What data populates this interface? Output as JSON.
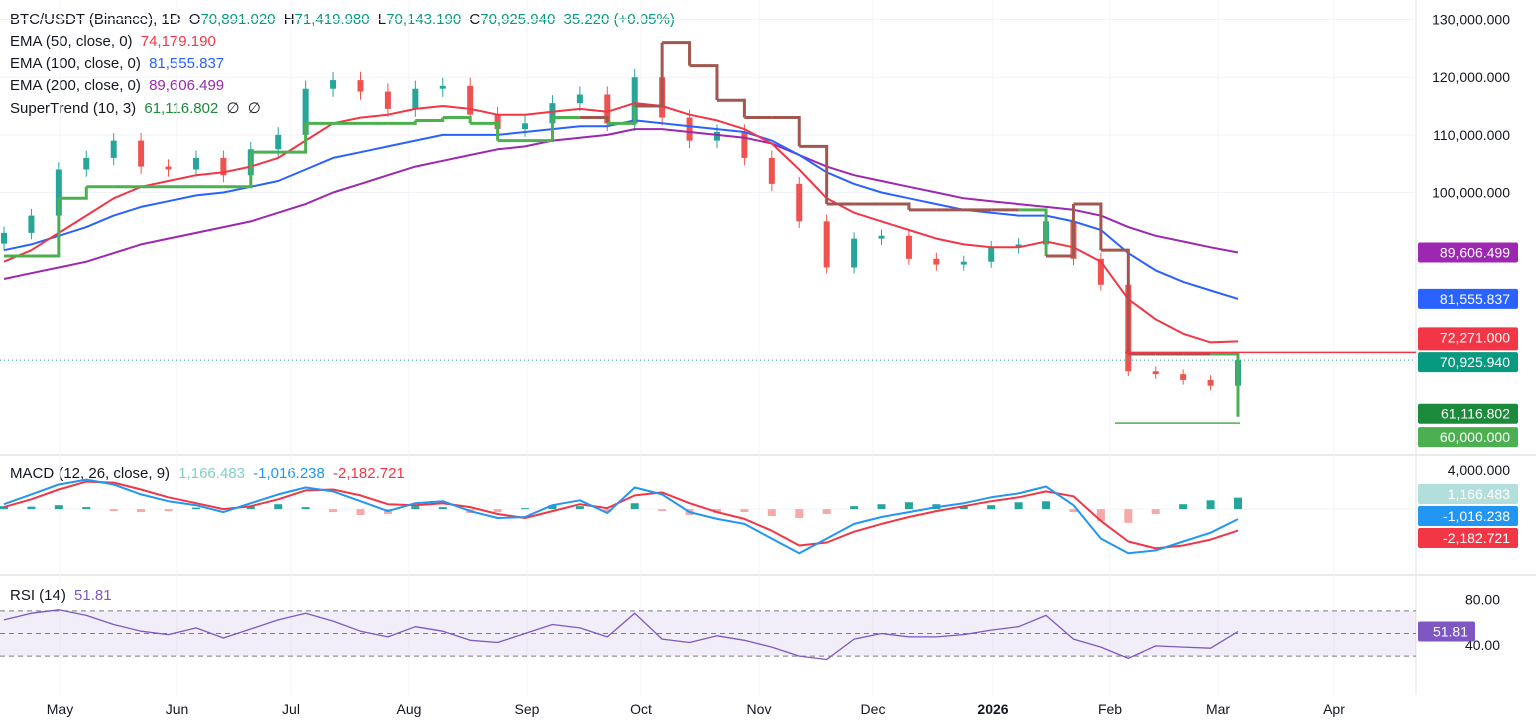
{
  "header": {
    "symbol": "BTC/USDT (Binance), 1D",
    "open_label": "O",
    "open": "70,891.020",
    "high_label": "H",
    "high": "71,419.980",
    "low_label": "L",
    "low": "70,143.190",
    "close_label": "C",
    "close": "70,925.940",
    "change": "35.220 (+0.05%)",
    "ema50_label": "EMA (50, close, 0)",
    "ema50_value": "74,179.190",
    "ema100_label": "EMA (100, close, 0)",
    "ema100_value": "81,555.837",
    "ema200_label": "EMA (200, close, 0)",
    "ema200_value": "89,606.499",
    "supertrend_label": "SuperTrend (10, 3)",
    "supertrend_value": "61,116.802",
    "null_glyph": "∅",
    "macd_label": "MACD (12, 26, close, 9)",
    "macd_hist": "1,166.483",
    "macd_line": "-1,016.238",
    "macd_signal": "-2,182.721",
    "rsi_label": "RSI (14)",
    "rsi_value": "51.81"
  },
  "price_axis": [
    "130,000.000",
    "120,000.000",
    "110,000.000",
    "100,000.000"
  ],
  "macd_axis": [
    "4,000.000"
  ],
  "rsi_axis": [
    "80.00",
    "40.00"
  ],
  "badges": {
    "ema200": "89,606.499",
    "ema100": "81,555.837",
    "ema50": "74,179.190",
    "level_high": "72,271.000",
    "close": "70,925.940",
    "supertrend": "61,116.802",
    "level_low": "60,000.000",
    "macd_hist": "1,166.483",
    "macd_line": "-1,016.238",
    "macd_signal": "-2,182.721",
    "rsi": "51.81"
  },
  "months": [
    "May",
    "Jun",
    "Jul",
    "Aug",
    "Sep",
    "Oct",
    "Nov",
    "Dec",
    "2026",
    "Feb",
    "Mar",
    "Apr"
  ],
  "colors": {
    "up": "#26a69a",
    "down": "#ef5350",
    "ema50": "#f23645",
    "ema100": "#2962ff",
    "ema200": "#9c27b0",
    "supertrend_up": "#4caf50",
    "supertrend_down": "#a1574f",
    "macd_line": "#2196f3",
    "macd_signal": "#f23645",
    "rsi": "#7e57c2",
    "level_line": "#f23645",
    "low_line": "#4caf50"
  },
  "chart_data": {
    "type": "candlestick",
    "interval": "1D",
    "x": [
      "2025-04-24",
      "2025-05-01",
      "2025-05-08",
      "2025-05-15",
      "2025-05-22",
      "2025-05-29",
      "2025-06-05",
      "2025-06-12",
      "2025-06-19",
      "2025-06-26",
      "2025-07-03",
      "2025-07-10",
      "2025-07-17",
      "2025-07-24",
      "2025-07-31",
      "2025-08-07",
      "2025-08-14",
      "2025-08-21",
      "2025-08-28",
      "2025-09-04",
      "2025-09-11",
      "2025-09-18",
      "2025-09-25",
      "2025-10-02",
      "2025-10-09",
      "2025-10-16",
      "2025-10-23",
      "2025-10-30",
      "2025-11-06",
      "2025-11-13",
      "2025-11-20",
      "2025-11-27",
      "2025-12-04",
      "2025-12-11",
      "2025-12-18",
      "2025-12-25",
      "2026-01-01",
      "2026-01-08",
      "2026-01-15",
      "2026-01-22",
      "2026-01-29",
      "2026-02-05",
      "2026-02-12",
      "2026-02-19",
      "2026-02-26",
      "2026-03-05"
    ],
    "close": [
      93000,
      96000,
      104000,
      106000,
      109000,
      104500,
      104000,
      106000,
      103000,
      107500,
      110000,
      118000,
      119500,
      117500,
      114500,
      118000,
      118500,
      113500,
      111000,
      112000,
      115500,
      117000,
      112000,
      120000,
      113000,
      109000,
      110500,
      106000,
      101500,
      95000,
      87000,
      92000,
      92500,
      88500,
      87500,
      88000,
      90500,
      91000,
      95000,
      88500,
      84000,
      69000,
      68500,
      67500,
      66500,
      70926
    ],
    "ema50": [
      88000,
      90000,
      93000,
      96000,
      99000,
      101000,
      102000,
      103000,
      103500,
      104500,
      106000,
      109000,
      112000,
      113000,
      113500,
      114500,
      115000,
      114500,
      113500,
      113500,
      114000,
      114500,
      114000,
      115500,
      115000,
      113500,
      112500,
      111000,
      108500,
      104000,
      99000,
      96500,
      95000,
      93500,
      92000,
      91000,
      90500,
      90500,
      91500,
      90500,
      88000,
      81500,
      78000,
      75500,
      74000,
      74179
    ],
    "ema100": [
      90000,
      91000,
      92500,
      94000,
      96000,
      97500,
      98500,
      99500,
      100000,
      101000,
      102000,
      104000,
      106000,
      107000,
      108000,
      109000,
      110000,
      110000,
      110000,
      110500,
      111000,
      111500,
      111500,
      112500,
      112000,
      111500,
      111000,
      110500,
      109000,
      106500,
      103500,
      101500,
      100000,
      99000,
      98000,
      97000,
      96500,
      96000,
      96000,
      95000,
      93500,
      89500,
      86500,
      84500,
      83000,
      81556
    ],
    "ema200": [
      85000,
      86000,
      87000,
      88000,
      89500,
      91000,
      92000,
      93000,
      94000,
      95000,
      96500,
      98000,
      100000,
      101500,
      103000,
      104500,
      105500,
      106500,
      107500,
      108000,
      109000,
      109500,
      110000,
      111000,
      111000,
      110500,
      110000,
      109500,
      108500,
      106500,
      104500,
      103000,
      102000,
      101000,
      100000,
      99000,
      98500,
      98000,
      97500,
      97000,
      96000,
      94000,
      92500,
      91500,
      90500,
      89606
    ],
    "supertrend": [
      89000,
      89000,
      99000,
      101000,
      101000,
      101000,
      101000,
      101000,
      101000,
      107000,
      107000,
      112000,
      112000,
      112000,
      112000,
      112500,
      113000,
      112000,
      109000,
      109000,
      113000,
      113000,
      112000,
      115000,
      126000,
      122000,
      116000,
      113000,
      113000,
      108000,
      98000,
      98000,
      98000,
      97000,
      97000,
      97000,
      97000,
      97000,
      89000,
      98000,
      90000,
      72000,
      72000,
      72000,
      72000,
      61117
    ],
    "macd_hist": [
      300,
      250,
      400,
      200,
      -200,
      -300,
      -200,
      150,
      100,
      300,
      500,
      200,
      -300,
      -600,
      -500,
      300,
      200,
      -400,
      -300,
      100,
      400,
      300,
      -300,
      600,
      -200,
      -600,
      -400,
      -300,
      -700,
      -900,
      -500,
      300,
      500,
      700,
      500,
      300,
      400,
      700,
      800,
      -300,
      -1200,
      -1400,
      -500,
      500,
      900,
      1166
    ],
    "macd_line": [
      500,
      1500,
      2500,
      3000,
      2500,
      1500,
      800,
      400,
      -300,
      600,
      1500,
      2200,
      1800,
      800,
      -200,
      600,
      800,
      -200,
      -900,
      -800,
      400,
      900,
      -400,
      2200,
      1500,
      -300,
      -1000,
      -1500,
      -3000,
      -4500,
      -3000,
      -1500,
      -800,
      -300,
      200,
      600,
      1200,
      1600,
      2300,
      400,
      -3000,
      -4500,
      -4200,
      -3300,
      -2400,
      -1016
    ],
    "macd_signal": [
      200,
      1000,
      2000,
      2800,
      2700,
      2000,
      1200,
      600,
      0,
      300,
      1000,
      1900,
      2000,
      1400,
      500,
      400,
      600,
      200,
      -500,
      -900,
      -200,
      500,
      100,
      1400,
      1700,
      600,
      -300,
      -1000,
      -2200,
      -3700,
      -3400,
      -2300,
      -1500,
      -800,
      -200,
      300,
      800,
      1200,
      1800,
      1300,
      -1200,
      -3300,
      -4000,
      -3700,
      -3100,
      -2183
    ],
    "rsi": [
      62,
      68,
      71,
      66,
      58,
      52,
      49,
      55,
      46,
      54,
      62,
      68,
      61,
      52,
      47,
      56,
      52,
      44,
      42,
      50,
      58,
      55,
      47,
      68,
      45,
      42,
      48,
      44,
      38,
      30,
      27,
      45,
      50,
      47,
      47,
      49,
      53,
      56,
      66,
      45,
      38,
      28,
      39,
      38,
      37,
      51.81
    ],
    "ylim_price": [
      55000,
      132000
    ],
    "ylim_macd": [
      -6500,
      5200
    ],
    "ylim_rsi": [
      0,
      100
    ],
    "levels": [
      72271,
      60000
    ]
  }
}
